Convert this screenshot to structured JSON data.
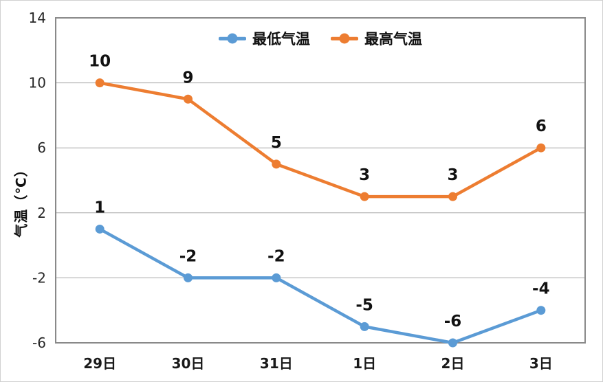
{
  "chart_data": {
    "type": "line",
    "title": "",
    "xlabel": "",
    "ylabel": "气温（℃）",
    "categories": [
      "29日",
      "30日",
      "31日",
      "1日",
      "2日",
      "3日"
    ],
    "series": [
      {
        "id": "min-temp",
        "name": "最低气温",
        "color": "#5B9BD5",
        "values": [
          1,
          -2,
          -2,
          -5,
          -6,
          -4
        ]
      },
      {
        "id": "max-temp",
        "name": "最高气温",
        "color": "#ED7D31",
        "values": [
          10,
          9,
          5,
          3,
          3,
          6
        ]
      }
    ],
    "ylim": [
      -6,
      14
    ],
    "yticks": [
      14,
      10,
      6,
      2,
      -2,
      -6
    ],
    "grid": true,
    "legend_position": "top-center",
    "colors": {
      "gridline": "#A6A6A6",
      "plot_border": "#898989",
      "tick_text": "#262626",
      "label_text": "#111111",
      "background": "#FFFFFF"
    }
  }
}
